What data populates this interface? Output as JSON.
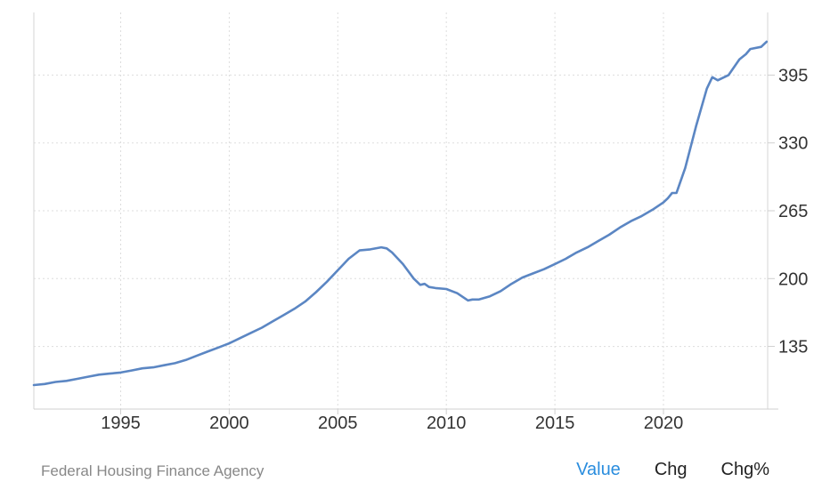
{
  "chart_data": {
    "type": "line",
    "title": "",
    "xlabel": "",
    "ylabel": "",
    "x_ticks": [
      1995,
      2000,
      2005,
      2010,
      2015,
      2020
    ],
    "y_ticks": [
      135,
      200,
      265,
      330,
      395
    ],
    "xlim": [
      1991.0,
      2024.8
    ],
    "ylim": [
      75,
      455
    ],
    "grid": true,
    "color": "#5b86c3",
    "series": [
      {
        "x": [
          1991.0,
          1991.5,
          1992.0,
          1992.5,
          1993.0,
          1993.5,
          1994.0,
          1994.5,
          1995.0,
          1995.5,
          1996.0,
          1996.5,
          1997.0,
          1997.5,
          1998.0,
          1998.5,
          1999.0,
          1999.5,
          2000.0,
          2000.5,
          2001.0,
          2001.5,
          2002.0,
          2002.5,
          2003.0,
          2003.5,
          2004.0,
          2004.5,
          2005.0,
          2005.5,
          2006.0,
          2006.5,
          2007.0,
          2007.25,
          2007.5,
          2008.0,
          2008.5,
          2008.8,
          2009.0,
          2009.2,
          2009.5,
          2010.0,
          2010.5,
          2011.0,
          2011.2,
          2011.5,
          2012.0,
          2012.5,
          2013.0,
          2013.5,
          2014.0,
          2014.5,
          2015.0,
          2015.5,
          2016.0,
          2016.5,
          2017.0,
          2017.5,
          2018.0,
          2018.5,
          2019.0,
          2019.5,
          2020.0,
          2020.2,
          2020.4,
          2020.6,
          2021.0,
          2021.5,
          2022.0,
          2022.25,
          2022.5,
          2023.0,
          2023.5,
          2023.8,
          2024.0,
          2024.5,
          2024.75
        ],
        "y": [
          98,
          99,
          101,
          102,
          104,
          106,
          108,
          109,
          110,
          112,
          114,
          115,
          117,
          119,
          122,
          126,
          130,
          134,
          138,
          143,
          148,
          153,
          159,
          165,
          171,
          178,
          187,
          197,
          208,
          219,
          227,
          228,
          230,
          229,
          225,
          214,
          200,
          194,
          195,
          192,
          191,
          190,
          186,
          179,
          180,
          180,
          183,
          188,
          195,
          201,
          205,
          209,
          214,
          219,
          225,
          230,
          236,
          242,
          249,
          255,
          260,
          266,
          273,
          277,
          282,
          282,
          306,
          346,
          382,
          393,
          390,
          395,
          410,
          415,
          420,
          422,
          427
        ]
      }
    ]
  },
  "footer": {
    "source": "Federal Housing Finance Agency",
    "tabs": [
      "Value",
      "Chg",
      "Chg%"
    ],
    "active_tab": "Value",
    "active_color": "#2a8dde"
  }
}
